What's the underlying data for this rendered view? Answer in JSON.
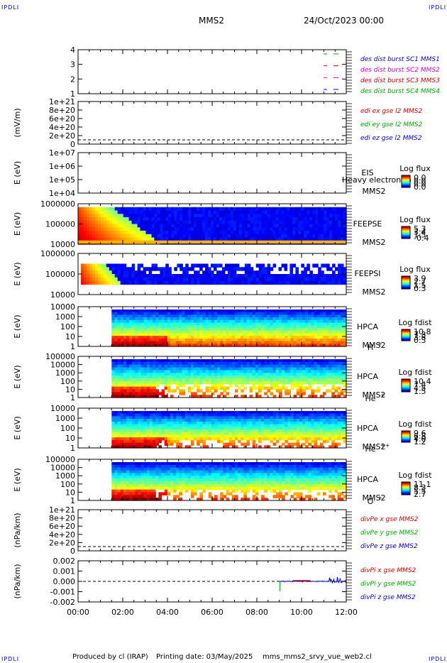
{
  "corners": {
    "tl": "IPDLI",
    "tr": "IPDLI",
    "bl": "IPDLI",
    "br": "IPDLI"
  },
  "header": {
    "mission": "MMS2",
    "datetime": "24/Oct/2023 00:00"
  },
  "footer": {
    "produced": "Produced by cl (IRAP)",
    "printing": "Printing date: 03/May/2025",
    "script": "mms_mms2_srvy_vue_web2.cl"
  },
  "time_axis": {
    "ticks": [
      "00:00",
      "02:00",
      "04:00",
      "06:00",
      "08:00",
      "10:00",
      "12:00"
    ]
  },
  "panels": [
    {
      "id": "burst",
      "ylabel": "",
      "ticks": [
        "4",
        "3",
        "2",
        "1"
      ],
      "legend": [
        {
          "text": "des dist burst SC1 MMS1",
          "color": "#0000cc"
        },
        {
          "text": "des dist burst SC2 MMS2",
          "color": "#cc00cc"
        },
        {
          "text": "des dist burst SC3 MMS3",
          "color": "#cc0000"
        },
        {
          "text": "des dist burst SC4 MMS4",
          "color": "#00aa00"
        }
      ]
    },
    {
      "id": "edi",
      "ylabel": "(mV/m)",
      "ticks": [
        "1e+21",
        "8e+20",
        "6e+20",
        "4e+20",
        "2e+20",
        "0"
      ],
      "legend": [
        {
          "text": "edi ex gse l2 MMS2",
          "color": "#cc0000"
        },
        {
          "text": "edi ey gse l2 MMS2",
          "color": "#00aa00"
        },
        {
          "text": "edi ez gse l2 MMS2",
          "color": "#0000cc"
        }
      ]
    },
    {
      "id": "eis",
      "ylabel": "E (eV)",
      "ticks": [
        "1e+07",
        "1e+06",
        "1e+05",
        "1e+04"
      ],
      "side": [
        "EIS",
        "MMS2"
      ],
      "overlay": "Heavy electron to",
      "cbar_title": "Log flux",
      "cbar_ticks": [
        "0.0",
        "0.0",
        "0.0",
        "0.0"
      ]
    },
    {
      "id": "feepse",
      "ylabel": "E (eV)",
      "ticks": [
        "1000000",
        "100000",
        "10000"
      ],
      "side": [
        "FEEPSE",
        "MMS2"
      ],
      "cbar_title": "Log flux",
      "cbar_ticks": [
        "5.3",
        "3.4",
        "1.5",
        "-0.4"
      ]
    },
    {
      "id": "feepsi",
      "ylabel": "E (eV)",
      "ticks": [
        "1000000",
        "100000",
        "10000"
      ],
      "side": [
        "FEEPSI",
        "MMS2"
      ],
      "cbar_title": "Log flux",
      "cbar_ticks": [
        "3.9",
        "2.7",
        "1.5",
        "0.3"
      ]
    },
    {
      "id": "hpca_h",
      "ylabel": "E (eV)",
      "ticks": [
        "10000",
        "1000",
        "100",
        "10",
        "1"
      ],
      "side": [
        "HPCA",
        "MMS2"
      ],
      "species": "H",
      "charge": "+",
      "cbar_title": "Log fdist",
      "cbar_ticks": [
        "10.8",
        "7.3",
        "3.8",
        "0.3"
      ]
    },
    {
      "id": "hpca_he",
      "ylabel": "E (eV)",
      "ticks": [
        "100000",
        "10000",
        "1000",
        "100",
        "10",
        "1"
      ],
      "side": [
        "HPCA",
        "MMS2"
      ],
      "species": "He",
      "charge": "+",
      "cbar_title": "Log fdist",
      "cbar_ticks": [
        "10.4",
        "7.4",
        "4.5",
        "1.5"
      ]
    },
    {
      "id": "hpca_hepp",
      "ylabel": "E (eV)",
      "ticks": [
        "10000",
        "1000",
        "100",
        "10",
        "1"
      ],
      "side": [
        "HPCA",
        "MMS2"
      ],
      "species": "He",
      "charge": "++",
      "cbar_title": "Log fdist",
      "cbar_ticks": [
        "9.6",
        "6.8",
        "4.0",
        "1.2"
      ]
    },
    {
      "id": "hpca_o",
      "ylabel": "E (eV)",
      "ticks": [
        "100000",
        "10000",
        "1000",
        "100",
        "10",
        "1"
      ],
      "side": [
        "HPCA",
        "MMS2"
      ],
      "species": "O",
      "charge": "+",
      "cbar_title": "Log fdist",
      "cbar_ticks": [
        "11.1",
        "8.3",
        "5.5",
        "2.7"
      ]
    },
    {
      "id": "divpe",
      "ylabel": "(nPa/km)",
      "ticks": [
        "1e+21",
        "8e+20",
        "6e+20",
        "4e+20",
        "2e+20",
        "0"
      ],
      "legend": [
        {
          "text": "divPe x gse MMS2",
          "color": "#cc0000"
        },
        {
          "text": "divPe y gse MMS2",
          "color": "#00aa00"
        },
        {
          "text": "divPe z gse MMS2",
          "color": "#0000cc"
        }
      ]
    },
    {
      "id": "divpi",
      "ylabel": "(nPa/km)",
      "ticks": [
        "0.002",
        "0.001",
        "0.000",
        "-0.001",
        "-0.002"
      ],
      "legend": [
        {
          "text": "divPi x gse MMS2",
          "color": "#cc0000"
        },
        {
          "text": "divPi y gse MMS2",
          "color": "#00aa00"
        },
        {
          "text": "divPi z gse MMS2",
          "color": "#0000cc"
        }
      ]
    }
  ],
  "chart_data": {
    "type": "heatmap",
    "title": "MMS2",
    "x_range_hours": [
      0,
      12
    ],
    "spectrograms": {
      "feepse": {
        "data_start_h": 0.0,
        "fade_end_h": 3.5
      },
      "feepsi": {
        "data_start_h": 0.1,
        "fade_end_h": 2.2
      },
      "hpca": {
        "data_start_h": 1.5
      }
    },
    "divpi_burst_interval_h": [
      9.0,
      12.0
    ],
    "colors": {
      "frame": "#000000",
      "dash": "#000000"
    }
  }
}
